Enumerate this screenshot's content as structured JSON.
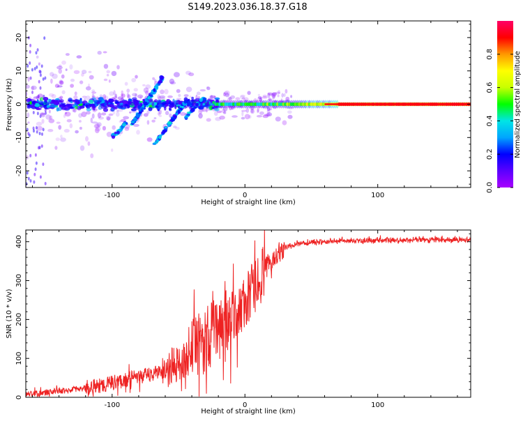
{
  "figure": {
    "title": "S149.2023.036.18.37.G18"
  },
  "chart_data": [
    {
      "type": "heatmap",
      "title": "S149.2023.036.18.37.G18",
      "xlabel": "Height of straight line (km)",
      "ylabel": "Frequency (Hz)",
      "xlim": [
        -165,
        170
      ],
      "ylim": [
        -25,
        25
      ],
      "xticks": [
        -100,
        0,
        100
      ],
      "yticks": [
        -20,
        -10,
        0,
        10,
        20
      ],
      "colorbar": {
        "label": "Normalized spectral amplitude",
        "range": [
          0.0,
          1.0
        ],
        "ticks": [
          "0.0",
          "0.2",
          "0.4",
          "0.6",
          "0.8"
        ],
        "colors": [
          "#a900ff",
          "#5a00ff",
          "#0000ff",
          "#00a5ff",
          "#00e5e5",
          "#00ff00",
          "#c8ff00",
          "#ffff00",
          "#ff9900",
          "#ff0000",
          "#ff0066"
        ]
      },
      "features": [
        {
          "name": "steady tone",
          "x_range": [
            -20,
            170
          ],
          "frequency": 0,
          "amplitude_start": 0.55,
          "amplitude_end": 0.9
        },
        {
          "name": "scattered energy",
          "x_range": [
            -165,
            -20
          ],
          "frequency_range": [
            -5,
            5
          ],
          "amplitude_range": [
            0.1,
            0.5
          ]
        },
        {
          "name": "descending branch",
          "x_range": [
            -85,
            -62
          ],
          "frequency_range": [
            -6,
            8
          ]
        },
        {
          "name": "descending branch",
          "x_range": [
            -68,
            -44
          ],
          "frequency_range": [
            -12,
            1
          ]
        }
      ]
    },
    {
      "type": "line",
      "xlabel": "Height of straight line (km)",
      "ylabel": "SNR (10 * v/v)",
      "xlim": [
        -165,
        170
      ],
      "ylim": [
        0,
        430
      ],
      "xticks": [
        -100,
        0,
        100
      ],
      "yticks": [
        0,
        100,
        200,
        300,
        400
      ],
      "color": "#ee2222",
      "series": [
        {
          "x": [
            -165,
            -150,
            -130,
            -110,
            -90,
            -75,
            -60,
            -50,
            -40,
            -30,
            -20,
            -10,
            0,
            5,
            10,
            15,
            20,
            25,
            30,
            40,
            60,
            80,
            100,
            120,
            140,
            160,
            170
          ],
          "y": [
            8,
            12,
            20,
            30,
            45,
            55,
            70,
            85,
            110,
            150,
            180,
            200,
            240,
            270,
            300,
            330,
            350,
            370,
            385,
            395,
            400,
            402,
            403,
            404,
            405,
            405,
            405
          ]
        }
      ]
    }
  ]
}
